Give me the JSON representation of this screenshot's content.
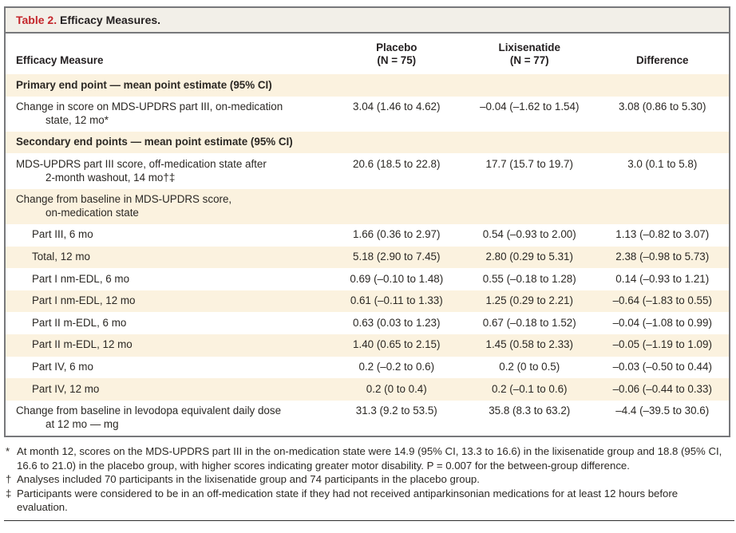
{
  "table": {
    "title_label": "Table 2.",
    "title_text": " Efficacy Measures.",
    "header": {
      "measure": "Efficacy Measure",
      "placebo": "Placebo\n(N = 75)",
      "lixisenatide": "Lixisenatide\n(N = 77)",
      "difference": "Difference"
    },
    "rows": [
      {
        "label": "Primary end point — mean point estimate (95% CI)"
      },
      {
        "label": "Change in score on MDS-UPDRS part III, on-medication\nstate, 12 mo*",
        "placebo": "3.04 (1.46 to 4.62)",
        "lixisenatide": "–0.04 (–1.62 to 1.54)",
        "difference": "3.08 (0.86 to 5.30)"
      },
      {
        "label": "Secondary end points — mean point estimate (95% CI)"
      },
      {
        "label": "MDS-UPDRS part III score, off-medication state after\n2-month washout, 14 mo†‡",
        "placebo": "20.6 (18.5 to 22.8)",
        "lixisenatide": "17.7 (15.7 to 19.7)",
        "difference": "3.0 (0.1 to 5.8)"
      },
      {
        "label": "Change from baseline in MDS-UPDRS score,\non-medication state"
      },
      {
        "label": "Part III, 6 mo",
        "placebo": "1.66 (0.36 to 2.97)",
        "lixisenatide": "0.54 (–0.93 to 2.00)",
        "difference": "1.13 (–0.82 to 3.07)"
      },
      {
        "label": "Total, 12 mo",
        "placebo": "5.18 (2.90 to 7.45)",
        "lixisenatide": "2.80 (0.29 to 5.31)",
        "difference": "2.38 (–0.98 to 5.73)"
      },
      {
        "label": "Part I nm-EDL, 6 mo",
        "placebo": "0.69 (–0.10 to 1.48)",
        "lixisenatide": "0.55 (–0.18 to 1.28)",
        "difference": "0.14 (–0.93 to 1.21)"
      },
      {
        "label": "Part I nm-EDL, 12 mo",
        "placebo": "0.61 (–0.11 to 1.33)",
        "lixisenatide": "1.25 (0.29 to 2.21)",
        "difference": "–0.64 (–1.83 to 0.55)"
      },
      {
        "label": "Part II m-EDL, 6 mo",
        "placebo": "0.63 (0.03 to 1.23)",
        "lixisenatide": "0.67 (–0.18 to 1.52)",
        "difference": "–0.04 (–1.08 to 0.99)"
      },
      {
        "label": "Part II m-EDL, 12 mo",
        "placebo": "1.40 (0.65 to 2.15)",
        "lixisenatide": "1.45 (0.58 to 2.33)",
        "difference": "–0.05 (–1.19 to 1.09)"
      },
      {
        "label": "Part IV, 6 mo",
        "placebo": "0.2 (–0.2 to 0.6)",
        "lixisenatide": "0.2 (0 to 0.5)",
        "difference": "–0.03 (–0.50 to 0.44)"
      },
      {
        "label": "Part IV, 12 mo",
        "placebo": "0.2 (0 to 0.4)",
        "lixisenatide": "0.2 (–0.1 to 0.6)",
        "difference": "–0.06 (–0.44 to 0.33)"
      },
      {
        "label": "Change from baseline in levodopa equivalent daily dose\nat 12 mo — mg",
        "placebo": "31.3 (9.2 to 53.5)",
        "lixisenatide": "35.8 (8.3 to 63.2)",
        "difference": "–4.4 (–39.5 to 30.6)"
      }
    ]
  },
  "footnotes": [
    {
      "marker": "*",
      "text": "At month 12, scores on the MDS-UPDRS part III in the on-medication state were 14.9 (95% CI, 13.3 to 16.6) in the lixisenatide group and 18.8 (95% CI, 16.6 to 21.0) in the placebo group, with higher scores indicating greater motor disability. P = 0.007 for the between-group difference."
    },
    {
      "marker": "†",
      "text": "Analyses included 70 participants in the lixisenatide group and 74 participants in the placebo group."
    },
    {
      "marker": "‡",
      "text": "Participants were considered to be in an off-medication state if they had not received antiparkinsonian medications for at least 12 hours before evaluation."
    }
  ],
  "colors": {
    "accent_red": "#c4262b",
    "row_highlight_beige": "#fbf2df",
    "title_band_gray": "#f2efe8",
    "table_border_gray": "#77787b"
  }
}
